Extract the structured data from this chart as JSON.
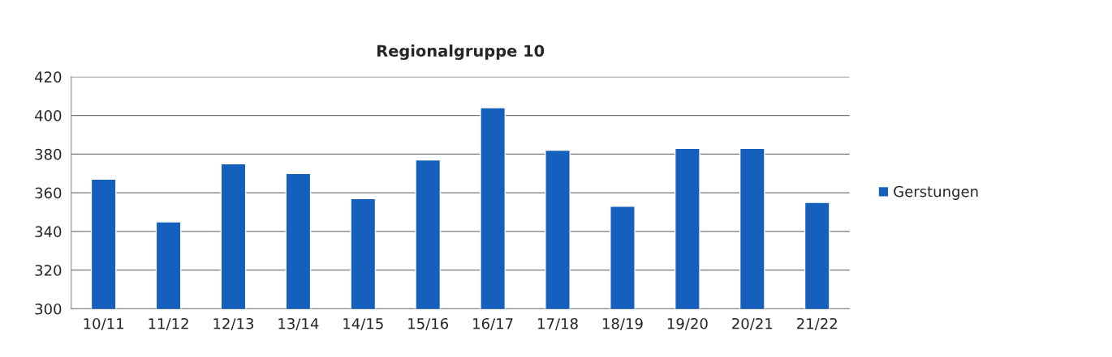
{
  "chart_data": {
    "type": "bar",
    "title": "Regionalgruppe 10",
    "categories": [
      "10/11",
      "11/12",
      "12/13",
      "13/14",
      "14/15",
      "15/16",
      "16/17",
      "17/18",
      "18/19",
      "19/20",
      "20/21",
      "21/22"
    ],
    "series": [
      {
        "name": "Gerstungen",
        "color": "#1560bd",
        "values": [
          367,
          345,
          375,
          370,
          357,
          377,
          404,
          382,
          353,
          383,
          383,
          355
        ]
      }
    ],
    "ylim": [
      300,
      420
    ],
    "yticks": [
      300,
      320,
      340,
      360,
      380,
      400,
      420
    ],
    "grid": "y",
    "legend": "right"
  }
}
